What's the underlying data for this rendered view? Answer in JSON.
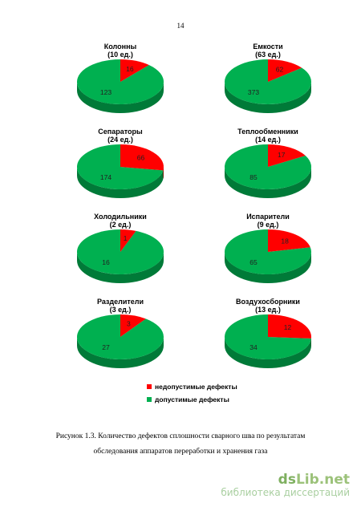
{
  "page_number": "14",
  "colors": {
    "inadmissible": "#ff0000",
    "admissible": "#00b050",
    "accent": "#9cc27a"
  },
  "legend": {
    "inadmissible": "недопустимые дефекты",
    "admissible": "допустимые дефекты"
  },
  "caption": {
    "line1": "Рисунок 1.3. Количество дефектов сплошности сварного шва по результатам",
    "line2": "обследования аппаратов переработки и хранения газа"
  },
  "watermark": {
    "logo_a": "ds",
    "logo_b": "Lib.net",
    "subtitle": "библиотека диссертаций"
  },
  "chart_data": [
    {
      "type": "pie",
      "title": "Колонны",
      "subtitle": "(10 ед.)",
      "categories": [
        "недопустимые дефекты",
        "допустимые дефекты"
      ],
      "values": [
        16,
        123
      ]
    },
    {
      "type": "pie",
      "title": "Емкости",
      "subtitle": "(63 ед.)",
      "categories": [
        "недопустимые дефекты",
        "допустимые дефекты"
      ],
      "values": [
        62,
        373
      ]
    },
    {
      "type": "pie",
      "title": "Сепараторы",
      "subtitle": "(24 ед.)",
      "categories": [
        "недопустимые дефекты",
        "допустимые дефекты"
      ],
      "values": [
        66,
        174
      ]
    },
    {
      "type": "pie",
      "title": "Теплообменники",
      "subtitle": "(14 ед.)",
      "categories": [
        "недопустимые дефекты",
        "допустимые дефекты"
      ],
      "values": [
        17,
        85
      ]
    },
    {
      "type": "pie",
      "title": "Холодильники",
      "subtitle": "(2 ед.)",
      "categories": [
        "недопустимые дефекты",
        "допустимые дефекты"
      ],
      "values": [
        1,
        16
      ]
    },
    {
      "type": "pie",
      "title": "Испарители",
      "subtitle": "(9 ед.)",
      "categories": [
        "недопустимые дефекты",
        "допустимые дефекты"
      ],
      "values": [
        18,
        65
      ]
    },
    {
      "type": "pie",
      "title": "Разделители",
      "subtitle": "(3 ед.)",
      "categories": [
        "недопустимые дефекты",
        "допустимые дефекты"
      ],
      "values": [
        3,
        27
      ]
    },
    {
      "type": "pie",
      "title": "Воздухосборники",
      "subtitle": "(13 ед.)",
      "categories": [
        "недопустимые дефекты",
        "допустимые дефекты"
      ],
      "values": [
        12,
        34
      ]
    }
  ]
}
